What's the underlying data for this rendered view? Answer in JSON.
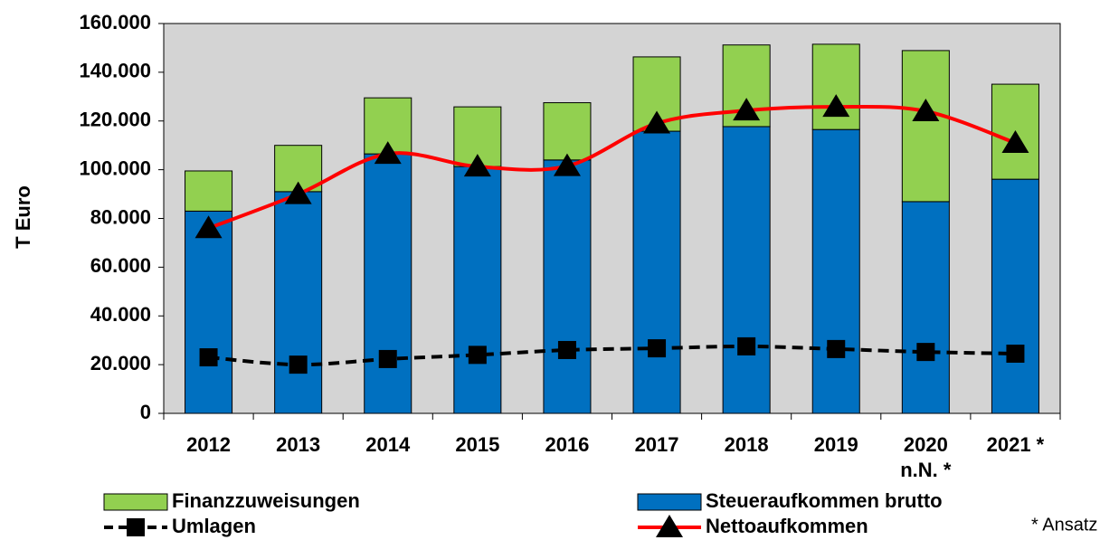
{
  "chart_data": {
    "type": "bar",
    "ylabel": "T Euro",
    "categories": [
      "2012",
      "2013",
      "2014",
      "2015",
      "2016",
      "2017",
      "2018",
      "2019",
      "2020\nn.N. *",
      "2021 *"
    ],
    "series": [
      {
        "name": "Steueraufkommen brutto",
        "type": "bar",
        "color": "#0070c0",
        "values": [
          83000,
          91000,
          106500,
          101300,
          104000,
          115800,
          117700,
          116500,
          86900,
          96100
        ]
      },
      {
        "name": "Finanzzuweisungen",
        "type": "bar",
        "color": "#92d050",
        "values": [
          16500,
          19000,
          23000,
          24500,
          23500,
          30500,
          33500,
          35000,
          62000,
          39000
        ]
      },
      {
        "name": "Umlagen",
        "type": "line",
        "color": "#000000",
        "dashed": true,
        "marker": "square",
        "values": [
          23000,
          20000,
          22300,
          24000,
          26000,
          26700,
          27500,
          26400,
          25200,
          24500
        ]
      },
      {
        "name": "Nettoaufkommen",
        "type": "line",
        "color": "#ff0000",
        "dashed": false,
        "marker": "triangle",
        "values": [
          76000,
          90000,
          106500,
          101300,
          101500,
          119000,
          124300,
          125800,
          124000,
          111000
        ]
      }
    ],
    "ylim": [
      0,
      160000
    ],
    "yticks": [
      0,
      {
        "value": 20000,
        "label": "20.000"
      },
      {
        "value": 40000,
        "label": "40.000"
      },
      {
        "value": 60000,
        "label": "60.000"
      },
      {
        "value": 80000,
        "label": "80.000"
      },
      {
        "value": 100000,
        "label": "100.000"
      },
      {
        "value": 120000,
        "label": "120.000"
      },
      {
        "value": 140000,
        "label": "140.000"
      },
      {
        "value": 160000,
        "label": "160.000"
      }
    ],
    "annotation": "* Ansatz",
    "plot_background": "#d4d4d4"
  }
}
